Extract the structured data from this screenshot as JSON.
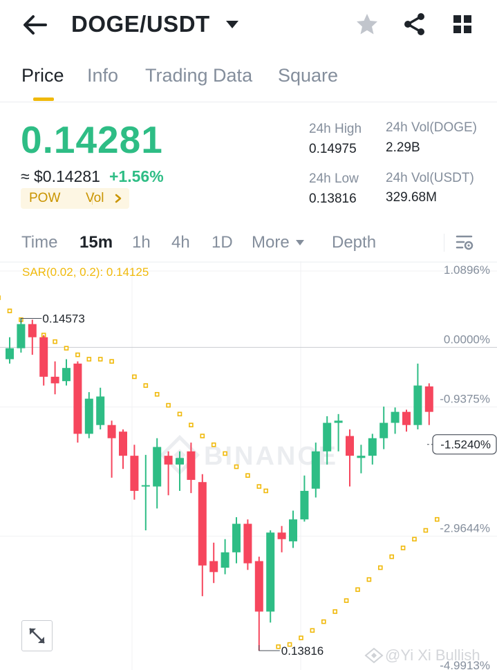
{
  "header": {
    "pair": "DOGE/USDT",
    "icons": [
      "back-arrow-icon",
      "caret-down-icon",
      "star-icon",
      "share-icon",
      "grid-icon"
    ]
  },
  "tabs": [
    {
      "label": "Price",
      "active": true
    },
    {
      "label": "Info",
      "active": false
    },
    {
      "label": "Trading Data",
      "active": false
    },
    {
      "label": "Square",
      "active": false
    }
  ],
  "ticker": {
    "last_price": "0.14281",
    "usd_price": "≈ $0.14281",
    "change": "+1.56%",
    "tags": [
      "POW",
      "Vol"
    ],
    "high_label": "24h High",
    "high_value": "0.14975",
    "low_label": "24h Low",
    "low_value": "0.13816",
    "vol_base_label": "24h Vol(DOGE)",
    "vol_base_value": "2.29B",
    "vol_quote_label": "24h Vol(USDT)",
    "vol_quote_value": "329.68M"
  },
  "intervals": [
    {
      "label": "Time",
      "active": false
    },
    {
      "label": "15m",
      "active": true
    },
    {
      "label": "1h",
      "active": false
    },
    {
      "label": "4h",
      "active": false
    },
    {
      "label": "1D",
      "active": false
    },
    {
      "label": "More",
      "active": false
    },
    {
      "label": "Depth",
      "active": false
    }
  ],
  "colors": {
    "up": "#2ebd85",
    "down": "#f6465d",
    "sar": "#f0b90b",
    "accent": "#f0b90b"
  },
  "chart": {
    "indicator": "SAR(0.02, 0.2): 0.14125",
    "axis_labels": [
      "1.0896%",
      "0.0000%",
      "-0.9375%",
      "-1.5240%",
      "-2.9644%",
      "-4.9913%"
    ],
    "current_label": "-1.5240%",
    "max_label": "0.14573",
    "min_label": "0.13816",
    "watermark": "BINANCE",
    "credit": "@Yi Xi Bullish"
  },
  "chart_data": {
    "type": "candlestick",
    "interval": "15m",
    "reference_price": 0.14507,
    "candles": [
      {
        "o": 0.1448,
        "h": 0.1453,
        "l": 0.1447,
        "c": 0.14505
      },
      {
        "o": 0.14505,
        "h": 0.14573,
        "l": 0.14495,
        "c": 0.1456
      },
      {
        "o": 0.1456,
        "h": 0.1457,
        "l": 0.1449,
        "c": 0.1453
      },
      {
        "o": 0.1453,
        "h": 0.14535,
        "l": 0.1442,
        "c": 0.1444
      },
      {
        "o": 0.1444,
        "h": 0.14475,
        "l": 0.144,
        "c": 0.14425
      },
      {
        "o": 0.1443,
        "h": 0.1448,
        "l": 0.1442,
        "c": 0.1446
      },
      {
        "o": 0.1447,
        "h": 0.14475,
        "l": 0.1429,
        "c": 0.1431
      },
      {
        "o": 0.1431,
        "h": 0.14405,
        "l": 0.143,
        "c": 0.1439
      },
      {
        "o": 0.1433,
        "h": 0.14415,
        "l": 0.1432,
        "c": 0.14395
      },
      {
        "o": 0.1433,
        "h": 0.1434,
        "l": 0.1421,
        "c": 0.143
      },
      {
        "o": 0.14315,
        "h": 0.1432,
        "l": 0.1423,
        "c": 0.1426
      },
      {
        "o": 0.1426,
        "h": 0.14285,
        "l": 0.1416,
        "c": 0.1418
      },
      {
        "o": 0.1419,
        "h": 0.14262,
        "l": 0.1409,
        "c": 0.14193
      },
      {
        "o": 0.1419,
        "h": 0.143,
        "l": 0.1414,
        "c": 0.1428
      },
      {
        "o": 0.1426,
        "h": 0.1427,
        "l": 0.1417,
        "c": 0.1424
      },
      {
        "o": 0.1424,
        "h": 0.1427,
        "l": 0.1418,
        "c": 0.14255
      },
      {
        "o": 0.1427,
        "h": 0.1429,
        "l": 0.14175,
        "c": 0.14205
      },
      {
        "o": 0.142,
        "h": 0.14218,
        "l": 0.1394,
        "c": 0.1401
      },
      {
        "o": 0.1402,
        "h": 0.14062,
        "l": 0.1397,
        "c": 0.13995
      },
      {
        "o": 0.14005,
        "h": 0.1407,
        "l": 0.1399,
        "c": 0.1404
      },
      {
        "o": 0.1404,
        "h": 0.1412,
        "l": 0.14015,
        "c": 0.14105
      },
      {
        "o": 0.14105,
        "h": 0.14115,
        "l": 0.14,
        "c": 0.14015
      },
      {
        "o": 0.1402,
        "h": 0.1403,
        "l": 0.13816,
        "c": 0.13905
      },
      {
        "o": 0.13905,
        "h": 0.1409,
        "l": 0.1388,
        "c": 0.14085
      },
      {
        "o": 0.14085,
        "h": 0.141,
        "l": 0.1404,
        "c": 0.1407
      },
      {
        "o": 0.14065,
        "h": 0.14135,
        "l": 0.1405,
        "c": 0.14115
      },
      {
        "o": 0.14115,
        "h": 0.14215,
        "l": 0.1411,
        "c": 0.1418
      },
      {
        "o": 0.14185,
        "h": 0.1429,
        "l": 0.14165,
        "c": 0.1427
      },
      {
        "o": 0.1427,
        "h": 0.1435,
        "l": 0.1424,
        "c": 0.14335
      },
      {
        "o": 0.14335,
        "h": 0.14355,
        "l": 0.1427,
        "c": 0.1434
      },
      {
        "o": 0.14305,
        "h": 0.1432,
        "l": 0.1419,
        "c": 0.1426
      },
      {
        "o": 0.14255,
        "h": 0.14285,
        "l": 0.1422,
        "c": 0.1426
      },
      {
        "o": 0.1426,
        "h": 0.1431,
        "l": 0.1424,
        "c": 0.143
      },
      {
        "o": 0.143,
        "h": 0.14372,
        "l": 0.14275,
        "c": 0.14335
      },
      {
        "o": 0.14335,
        "h": 0.1437,
        "l": 0.1431,
        "c": 0.1436
      },
      {
        "o": 0.1436,
        "h": 0.14365,
        "l": 0.14315,
        "c": 0.1433
      },
      {
        "o": 0.1433,
        "h": 0.1447,
        "l": 0.1432,
        "c": 0.1442
      },
      {
        "o": 0.14418,
        "h": 0.14425,
        "l": 0.1433,
        "c": 0.1436
      }
    ],
    "sar": [
      {
        "i": -1,
        "v": 0.1462
      },
      {
        "i": 0,
        "v": 0.1459
      },
      {
        "i": 1,
        "v": 0.1457
      },
      {
        "i": 2,
        "v": 0.1455
      },
      {
        "i": 3,
        "v": 0.14535
      },
      {
        "i": 4,
        "v": 0.1452
      },
      {
        "i": 5,
        "v": 0.14505
      },
      {
        "i": 6,
        "v": 0.1449
      },
      {
        "i": 7,
        "v": 0.1448
      },
      {
        "i": 8,
        "v": 0.1448
      },
      {
        "i": 9,
        "v": 0.14475
      },
      {
        "i": 10,
        "v": 0.14275
      },
      {
        "i": 11,
        "v": 0.1444
      },
      {
        "i": 12,
        "v": 0.1442
      },
      {
        "i": 13,
        "v": 0.144
      },
      {
        "i": 14,
        "v": 0.14375
      },
      {
        "i": 15,
        "v": 0.14355
      },
      {
        "i": 16,
        "v": 0.1433
      },
      {
        "i": 17,
        "v": 0.14305
      },
      {
        "i": 18,
        "v": 0.14285
      },
      {
        "i": 19,
        "v": 0.14265
      },
      {
        "i": 20,
        "v": 0.14235
      },
      {
        "i": 21,
        "v": 0.14215
      },
      {
        "i": 22,
        "v": 0.1419
      },
      {
        "i": 22.6,
        "v": 0.1418
      },
      {
        "i": 23.7,
        "v": 0.13825
      },
      {
        "i": 24.7,
        "v": 0.1383
      },
      {
        "i": 25.7,
        "v": 0.13845
      },
      {
        "i": 26.7,
        "v": 0.13862
      },
      {
        "i": 27.7,
        "v": 0.13882
      },
      {
        "i": 28.7,
        "v": 0.13905
      },
      {
        "i": 29.7,
        "v": 0.1393
      },
      {
        "i": 30.7,
        "v": 0.13955
      },
      {
        "i": 31.7,
        "v": 0.13978
      },
      {
        "i": 32.7,
        "v": 0.14005
      },
      {
        "i": 33.7,
        "v": 0.1403
      },
      {
        "i": 34.7,
        "v": 0.1405
      },
      {
        "i": 35.7,
        "v": 0.1407
      },
      {
        "i": 36.7,
        "v": 0.1409
      },
      {
        "i": 37.7,
        "v": 0.14115
      }
    ],
    "y_axis_percent": [
      1.0896,
      0.0,
      -0.9375,
      -1.524,
      -2.9644,
      -4.9913
    ]
  }
}
